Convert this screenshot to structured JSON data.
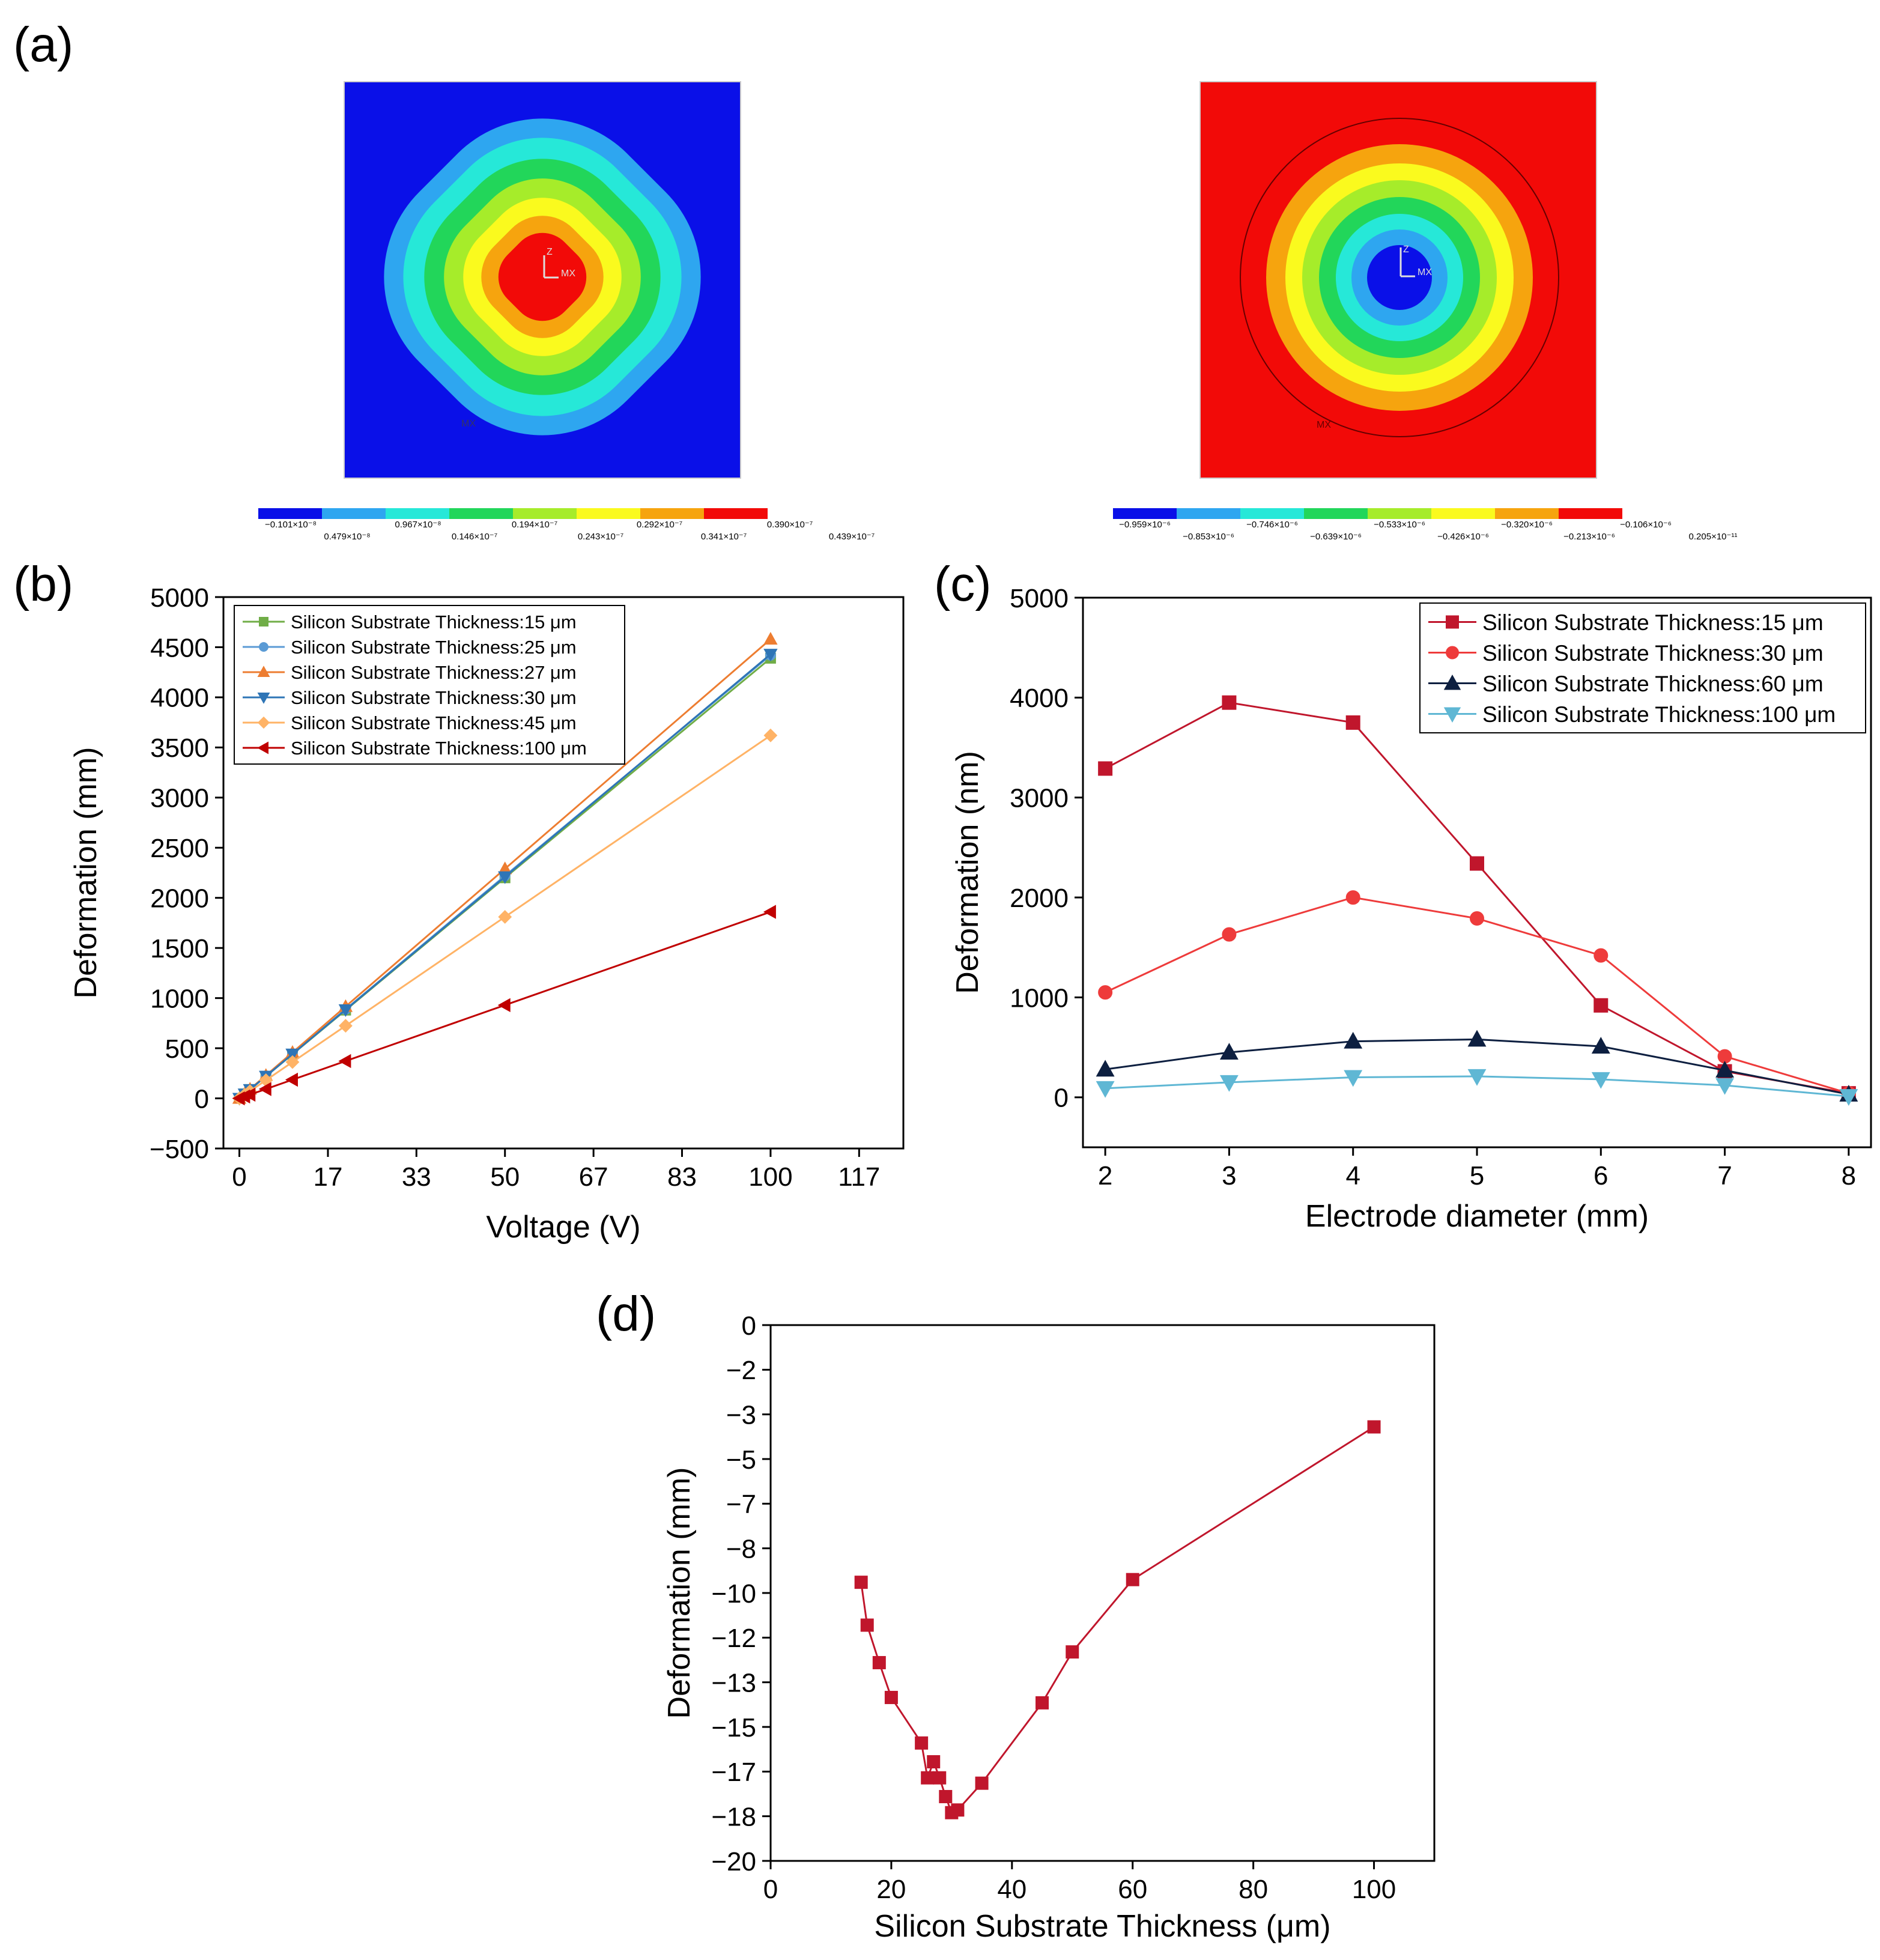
{
  "figure": {
    "panel_labels": [
      "(a)",
      "(b)",
      "(c)",
      "(d)"
    ],
    "colors": {
      "deep_blue": "#0a10e8",
      "light_blue": "#2ea6f0",
      "cyan": "#26e8d8",
      "green": "#22d65a",
      "yellow_green": "#a6ec2a",
      "yellow": "#fafa1e",
      "orange": "#f6a40e",
      "red": "#f20a08",
      "black": "#000000"
    }
  },
  "contour_left": {
    "scale_top": [
      "−0.101×10⁻⁸",
      "0.967×10⁻⁸",
      "0.194×10⁻⁷",
      "0.292×10⁻⁷",
      "0.390×10⁻⁷"
    ],
    "scale_bottom": [
      "0.479×10⁻⁸",
      "0.146×10⁻⁷",
      "0.243×10⁻⁷",
      "0.341×10⁻⁷",
      "0.439×10⁻⁷"
    ],
    "markers": [
      "Z",
      "MX",
      "MX"
    ]
  },
  "contour_right": {
    "scale_top": [
      "−0.959×10⁻⁶",
      "−0.746×10⁻⁶",
      "−0.533×10⁻⁶",
      "−0.320×10⁻⁶",
      "−0.106×10⁻⁶"
    ],
    "scale_bottom": [
      "−0.853×10⁻⁶",
      "−0.639×10⁻⁶",
      "−0.426×10⁻⁶",
      "−0.213×10⁻⁶",
      "0.205×10⁻¹¹"
    ],
    "markers": [
      "Z",
      "MX",
      "MX"
    ]
  },
  "chart_data": [
    {
      "panel": "(b)",
      "type": "line",
      "xlabel": "Voltage (V)",
      "ylabel": "Deformation (mm)",
      "xlim": [
        -3,
        125
      ],
      "ylim": [
        -500,
        5000
      ],
      "xticks": [
        0,
        16.67,
        33.33,
        50,
        66.67,
        83.33,
        100,
        116.67
      ],
      "xtick_labels": [
        "0",
        "17",
        "33",
        "50",
        "67",
        "83",
        "100",
        "117"
      ],
      "yticks": [
        -500,
        0,
        500,
        1000,
        1500,
        2000,
        2500,
        3000,
        3500,
        4000,
        4500,
        5000
      ],
      "ytick_labels": [
        "−500",
        "0",
        "500",
        "1000",
        "1500",
        "2000",
        "2500",
        "3000",
        "3500",
        "4000",
        "4500",
        "5000"
      ],
      "legend_position": "top-left",
      "series": [
        {
          "name": "Silicon Substrate Thickness:15 μm",
          "color": "#70ad47",
          "marker": "square",
          "x": [
            0,
            1,
            2,
            5,
            10,
            20,
            50,
            100
          ],
          "y": [
            0,
            44,
            88,
            220,
            440,
            880,
            2200,
            4390
          ]
        },
        {
          "name": "Silicon Substrate Thickness:25 μm",
          "color": "#5b9bd5",
          "marker": "circle",
          "x": [
            0,
            1,
            2,
            5,
            10,
            20,
            50,
            100
          ],
          "y": [
            0,
            44,
            89,
            222,
            444,
            888,
            2220,
            4420
          ]
        },
        {
          "name": "Silicon Substrate Thickness:27 μm",
          "color": "#ed7d31",
          "marker": "triangle-up",
          "x": [
            0,
            1,
            2,
            5,
            10,
            20,
            50,
            100
          ],
          "y": [
            0,
            46,
            92,
            229,
            458,
            916,
            2290,
            4580
          ]
        },
        {
          "name": "Silicon Substrate Thickness:30 μm",
          "color": "#2e75b6",
          "marker": "triangle-down",
          "x": [
            0,
            1,
            2,
            5,
            10,
            20,
            50,
            100
          ],
          "y": [
            0,
            44,
            88,
            221,
            442,
            884,
            2210,
            4430
          ]
        },
        {
          "name": "Silicon Substrate Thickness:45 μm",
          "color": "#ffb366",
          "marker": "diamond",
          "x": [
            0,
            1,
            2,
            5,
            10,
            20,
            50,
            100
          ],
          "y": [
            0,
            36,
            72,
            181,
            362,
            724,
            1810,
            3620
          ]
        },
        {
          "name": "Silicon Substrate Thickness:100 μm",
          "color": "#c00000",
          "marker": "triangle-left",
          "x": [
            0,
            1,
            2,
            5,
            10,
            20,
            50,
            100
          ],
          "y": [
            0,
            19,
            37,
            93,
            186,
            372,
            930,
            1860
          ]
        }
      ]
    },
    {
      "panel": "(c)",
      "type": "line",
      "xlabel": "Electrode diameter (mm)",
      "ylabel": "Deformation (nm)",
      "xlim": [
        1.82,
        8.18
      ],
      "ylim": [
        -500,
        5000
      ],
      "xticks": [
        2,
        3,
        4,
        5,
        6,
        7,
        8
      ],
      "xtick_labels": [
        "2",
        "3",
        "4",
        "5",
        "6",
        "7",
        "8"
      ],
      "yticks": [
        0,
        1000,
        2000,
        3000,
        4000,
        5000
      ],
      "ytick_labels": [
        "0",
        "1000",
        "2000",
        "3000",
        "4000",
        "5000"
      ],
      "legend_position": "top-right",
      "series": [
        {
          "name": "Silicon Substrate Thickness:15 μm",
          "color": "#c0162c",
          "marker": "square",
          "x": [
            2,
            3,
            4,
            5,
            6,
            7,
            8
          ],
          "y": [
            3290,
            3950,
            3750,
            2340,
            920,
            260,
            40
          ]
        },
        {
          "name": "Silicon Substrate Thickness:30 μm",
          "color": "#ee3b3b",
          "marker": "circle",
          "x": [
            2,
            3,
            4,
            5,
            6,
            7,
            8
          ],
          "y": [
            1050,
            1630,
            2000,
            1790,
            1420,
            410,
            40
          ]
        },
        {
          "name": "Silicon Substrate Thickness:60 μm",
          "color": "#0d1f40",
          "marker": "triangle-up",
          "x": [
            2,
            3,
            4,
            5,
            6,
            7,
            8
          ],
          "y": [
            280,
            450,
            560,
            580,
            510,
            270,
            30
          ]
        },
        {
          "name": "Silicon Substrate Thickness:100 μm",
          "color": "#5fb7d4",
          "marker": "triangle-down",
          "x": [
            2,
            3,
            4,
            5,
            6,
            7,
            8
          ],
          "y": [
            90,
            150,
            200,
            210,
            180,
            120,
            10
          ]
        }
      ]
    },
    {
      "panel": "(d)",
      "type": "line",
      "xlabel": "Silicon Substrate Thickness (μm)",
      "ylabel": "Deformation (mm)",
      "xlim": [
        0,
        110
      ],
      "ylim": [
        -20,
        0
      ],
      "xticks": [
        0,
        20,
        40,
        60,
        80,
        100
      ],
      "xtick_labels": [
        "0",
        "20",
        "40",
        "60",
        "80",
        "100"
      ],
      "yticks": [
        0,
        -1.667,
        -3.333,
        -5,
        -6.667,
        -8.333,
        -10,
        -11.667,
        -13.333,
        -15,
        -16.667,
        -18.333,
        -20
      ],
      "ytick_labels": [
        "0",
        "−2",
        "−3",
        "−5",
        "−7",
        "−8",
        "−10",
        "−12",
        "−13",
        "−15",
        "−17",
        "−18",
        "−20"
      ],
      "series": [
        {
          "name": "Silicon Substrate Thickness",
          "color": "#c0162c",
          "marker": "square",
          "x": [
            15,
            16,
            18,
            20,
            25,
            26,
            27,
            28,
            29,
            30,
            31,
            35,
            45,
            50,
            60,
            100
          ],
          "y": [
            -9.6,
            -11.2,
            -12.6,
            -13.9,
            -15.6,
            -16.9,
            -16.3,
            -16.9,
            -17.6,
            -18.2,
            -18.1,
            -17.1,
            -14.1,
            -12.2,
            -9.5,
            -3.8
          ]
        }
      ]
    }
  ]
}
